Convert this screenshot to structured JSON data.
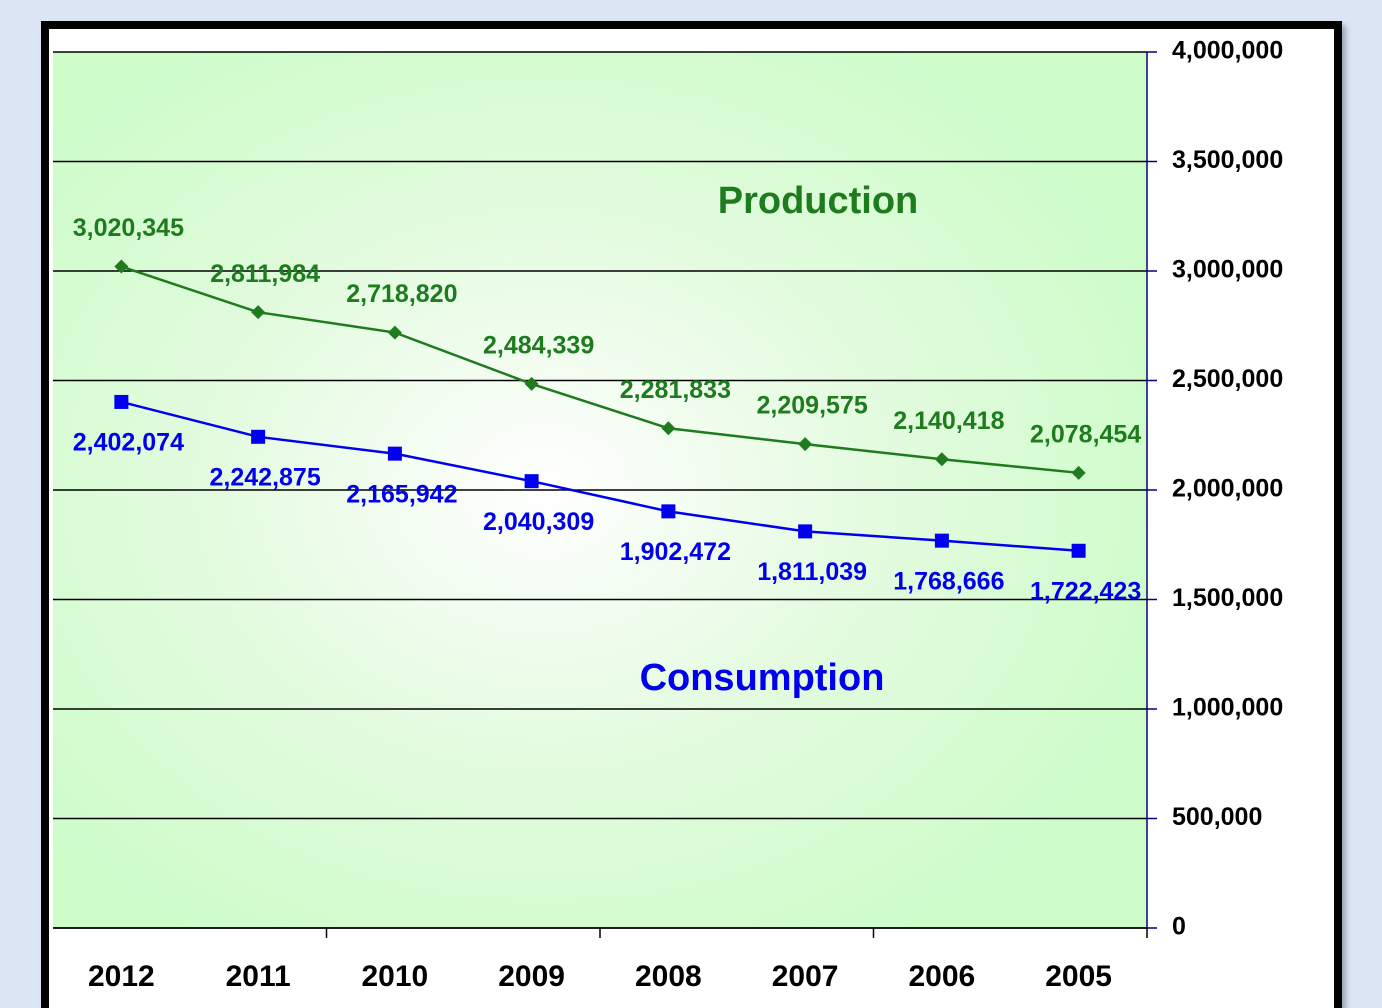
{
  "chart_data": {
    "type": "line",
    "annotations": [
      "Production",
      "Consumption"
    ],
    "categories": [
      "2012",
      "2011",
      "2010",
      "2009",
      "2008",
      "2007",
      "2006",
      "2005"
    ],
    "series": [
      {
        "name": "Production",
        "color": "#1e7b1e",
        "marker": "diamond",
        "values": [
          3020345,
          2811984,
          2718820,
          2484339,
          2281833,
          2209575,
          2140418,
          2078454
        ],
        "value_labels": [
          "3,020,345",
          "2,811,984",
          "2,718,820",
          "2,484,339",
          "2,281,833",
          "2,209,575",
          "2,140,418",
          "2,078,454"
        ]
      },
      {
        "name": "Consumption",
        "color": "#0000ee",
        "marker": "square",
        "values": [
          2402074,
          2242875,
          2165942,
          2040309,
          1902472,
          1811039,
          1768666,
          1722423
        ],
        "value_labels": [
          "2,402,074",
          "2,242,875",
          "2,165,942",
          "2,040,309",
          "1,902,472",
          "1,811,039",
          "1,768,666",
          "1,722,423"
        ]
      }
    ],
    "ylim": [
      0,
      4000000
    ],
    "yticks": [
      0,
      {
        "value": 500000,
        "label": "500,000"
      },
      {
        "value": 1000000,
        "label": "1,000,000"
      },
      {
        "value": 1500000,
        "label": "1,500,000"
      },
      {
        "value": 2000000,
        "label": "2,000,000"
      },
      {
        "value": 2500000,
        "label": "2,500,000"
      },
      {
        "value": 3000000,
        "label": "3,000,000"
      },
      {
        "value": 3500000,
        "label": "3,500,000"
      },
      {
        "value": 4000000,
        "label": "4,000,000"
      }
    ],
    "y_axis_side": "right",
    "grid": true
  }
}
